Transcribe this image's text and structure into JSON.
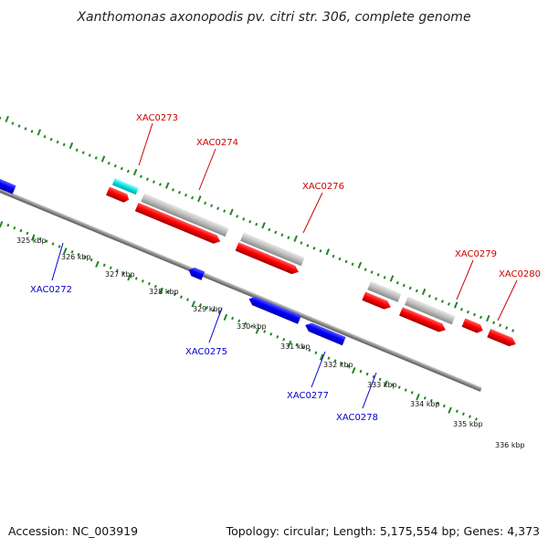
{
  "title": "Xanthomonas axonopodis pv. citri str. 306, complete genome",
  "footer": {
    "accession": "Accession: NC_003919",
    "summary": "Topology: circular; Length: 5,175,554 bp; Genes: 4,373"
  },
  "colors": {
    "forward_gene": "#ff0000",
    "reverse_gene": "#0000ff",
    "forward_label": "#cc0000",
    "reverse_label": "#0000cc",
    "rna": "#00e5e5",
    "other_feature": "#c0c0c0",
    "backbone": "#888888",
    "tick": "#228822"
  },
  "scale_labels": [
    "325 kbp",
    "326 kbp",
    "327 kbp",
    "328 kbp",
    "329 kbp",
    "330 kbp",
    "331 kbp",
    "332 kbp",
    "333 kbp",
    "334 kbp",
    "335 kbp",
    "336 kbp"
  ],
  "gene_labels_top": [
    "XAC0273",
    "XAC0274",
    "XAC0276",
    "XAC0279",
    "XAC0280"
  ],
  "gene_labels_bottom": [
    "XAC0272",
    "XAC0275",
    "XAC0277",
    "XAC0278"
  ]
}
